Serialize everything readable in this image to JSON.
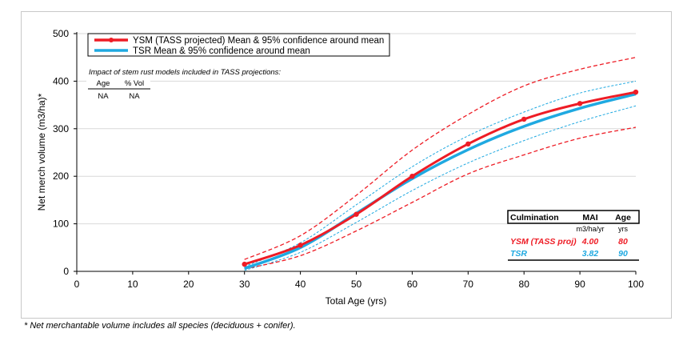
{
  "chart_data": {
    "type": "line",
    "xlabel": "Total Age (yrs)",
    "ylabel": "Net merch volume (m3/ha)*",
    "xlim": [
      0,
      100
    ],
    "ylim": [
      0,
      500
    ],
    "xticks": [
      "0",
      "10",
      "20",
      "30",
      "40",
      "50",
      "60",
      "70",
      "80",
      "90",
      "100"
    ],
    "yticks": [
      "0",
      "100",
      "200",
      "300",
      "400",
      "500"
    ],
    "grid": "horizontal",
    "legend_position": "top-left",
    "colors": {
      "ysm": "#ee1c25",
      "tsr": "#1fa9e1"
    },
    "series": [
      {
        "name": "YSM (TASS projected) Mean & 95% confidence around mean",
        "x": [
          30,
          40,
          50,
          60,
          70,
          80,
          90,
          100
        ],
        "y": [
          15,
          55,
          120,
          200,
          268,
          320,
          353,
          377
        ],
        "markers": true
      },
      {
        "name": "TSR Mean & 95% confidence around mean",
        "x": [
          30,
          40,
          50,
          60,
          70,
          80,
          90,
          100
        ],
        "y": [
          6,
          50,
          122,
          195,
          256,
          305,
          343,
          373
        ]
      }
    ],
    "ysm_ci_upper": {
      "x": [
        30,
        40,
        50,
        60,
        70,
        80,
        90,
        100
      ],
      "y": [
        25,
        75,
        160,
        255,
        330,
        390,
        425,
        450
      ]
    },
    "ysm_ci_lower": {
      "x": [
        30,
        40,
        50,
        60,
        70,
        80,
        90,
        100
      ],
      "y": [
        5,
        33,
        85,
        145,
        205,
        245,
        280,
        303
      ]
    },
    "tsr_ci_upper": {
      "x": [
        30,
        40,
        50,
        60,
        70,
        80,
        90,
        100
      ],
      "y": [
        10,
        60,
        140,
        220,
        285,
        335,
        375,
        400
      ]
    },
    "tsr_ci_lower": {
      "x": [
        30,
        40,
        50,
        60,
        70,
        80,
        90,
        100
      ],
      "y": [
        2,
        40,
        103,
        170,
        228,
        275,
        315,
        348
      ]
    }
  },
  "impact_table": {
    "title": "Impact of stem rust models included in TASS projections:",
    "headers": [
      "Age",
      "% Vol"
    ],
    "row": [
      "NA",
      "NA"
    ]
  },
  "culmination_table": {
    "headers": [
      "Culmination",
      "MAI",
      "Age"
    ],
    "units": [
      "m3/ha/yr",
      "yrs"
    ],
    "rows": [
      {
        "label": "YSM (TASS proj)",
        "mai": "4.00",
        "age": "80"
      },
      {
        "label": "TSR",
        "mai": "3.82",
        "age": "90"
      }
    ]
  },
  "footnote": "* Net merchantable volume includes all species (deciduous + conifer)."
}
